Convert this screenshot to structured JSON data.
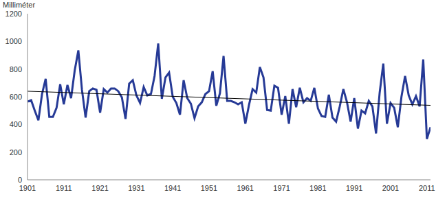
{
  "chart_data": {
    "type": "line",
    "y_label": "Milliméter",
    "x": [
      1901,
      1902,
      1903,
      1904,
      1905,
      1906,
      1907,
      1908,
      1909,
      1910,
      1911,
      1912,
      1913,
      1914,
      1915,
      1916,
      1917,
      1918,
      1919,
      1920,
      1921,
      1922,
      1923,
      1924,
      1925,
      1926,
      1927,
      1928,
      1929,
      1930,
      1931,
      1932,
      1933,
      1934,
      1935,
      1936,
      1937,
      1938,
      1939,
      1940,
      1941,
      1942,
      1943,
      1944,
      1945,
      1946,
      1947,
      1948,
      1949,
      1950,
      1951,
      1952,
      1953,
      1954,
      1955,
      1956,
      1957,
      1958,
      1959,
      1960,
      1961,
      1962,
      1963,
      1964,
      1965,
      1966,
      1967,
      1968,
      1969,
      1970,
      1971,
      1972,
      1973,
      1974,
      1975,
      1976,
      1977,
      1978,
      1979,
      1980,
      1981,
      1982,
      1983,
      1984,
      1985,
      1986,
      1987,
      1988,
      1989,
      1990,
      1991,
      1992,
      1993,
      1994,
      1995,
      1996,
      1997,
      1998,
      1999,
      2000,
      2001,
      2002,
      2003,
      2004,
      2005,
      2006,
      2007,
      2008,
      2009,
      2010,
      2011,
      2012
    ],
    "values": [
      565,
      575,
      500,
      430,
      620,
      730,
      455,
      455,
      520,
      690,
      545,
      685,
      590,
      790,
      935,
      650,
      450,
      640,
      660,
      650,
      485,
      655,
      630,
      660,
      660,
      640,
      595,
      440,
      695,
      720,
      610,
      555,
      670,
      610,
      620,
      750,
      985,
      585,
      740,
      775,
      600,
      555,
      470,
      720,
      590,
      550,
      445,
      530,
      560,
      620,
      640,
      785,
      535,
      625,
      895,
      570,
      570,
      560,
      545,
      560,
      405,
      540,
      655,
      630,
      815,
      740,
      505,
      500,
      680,
      665,
      470,
      605,
      405,
      655,
      525,
      665,
      560,
      590,
      570,
      665,
      515,
      460,
      455,
      615,
      450,
      420,
      530,
      655,
      560,
      420,
      590,
      370,
      500,
      480,
      570,
      530,
      335,
      630,
      840,
      405,
      555,
      520,
      380,
      600,
      750,
      610,
      545,
      605,
      530,
      870,
      295,
      380
    ],
    "color": "#263a96",
    "trend": {
      "x": [
        1901,
        2012
      ],
      "values": [
        640,
        538
      ],
      "color": "#000000"
    },
    "xlim": [
      1901,
      2012
    ],
    "xticks": [
      1901,
      1911,
      1921,
      1931,
      1941,
      1951,
      1961,
      1971,
      1981,
      1991,
      2001,
      2011
    ],
    "ylim": [
      0,
      1200
    ],
    "yticks": [
      0,
      200,
      400,
      600,
      800,
      1000,
      1200
    ],
    "grid": false
  }
}
